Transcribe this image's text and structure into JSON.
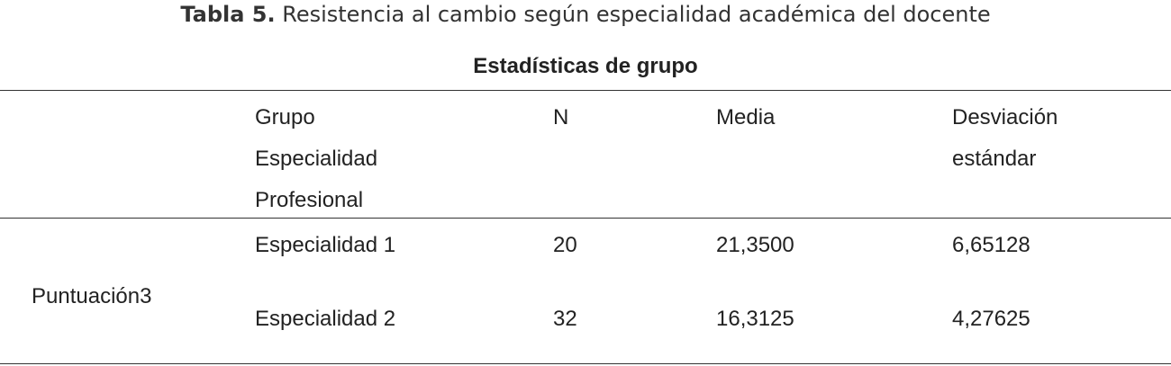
{
  "header": {
    "label": "Tabla 5.",
    "title": "Resistencia al cambio según especialidad académica del docente"
  },
  "table": {
    "caption": "Estadísticas de grupo",
    "columns": [
      [
        "Grupo",
        "Especialidad",
        "Profesional"
      ],
      [
        "N"
      ],
      [
        "Media"
      ],
      [
        "Desviación",
        "estándar"
      ]
    ],
    "row_label": "Puntuación3",
    "rows": [
      [
        "Especialidad 1",
        "20",
        "21,3500",
        "6,65128"
      ],
      [
        "Especialidad 2",
        "32",
        "16,3125",
        "4,27625"
      ]
    ]
  }
}
